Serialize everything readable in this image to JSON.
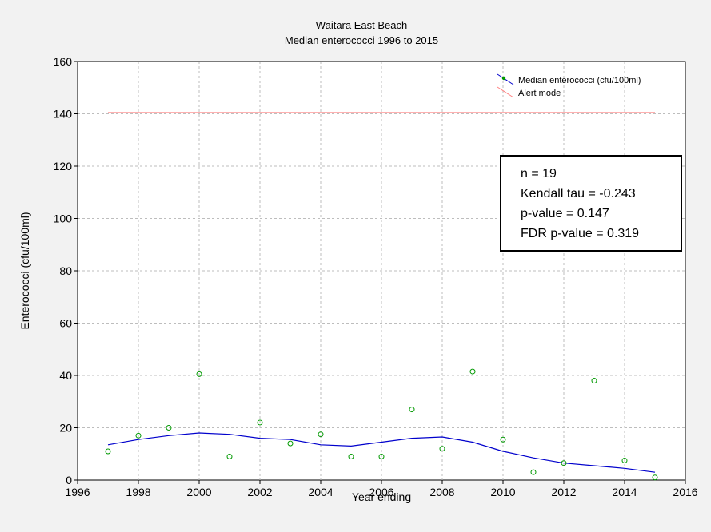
{
  "chart_data": {
    "type": "scatter",
    "title": "Waitara East Beach",
    "subtitle": "Median enterococci 1996 to 2015",
    "xlabel": "Year ending",
    "ylabel": "Enterococci (cfu/100ml)",
    "xlim": [
      1996,
      2016
    ],
    "ylim": [
      0,
      160
    ],
    "x_ticks": [
      1996,
      1998,
      2000,
      2002,
      2004,
      2006,
      2008,
      2010,
      2012,
      2014,
      2016
    ],
    "y_ticks": [
      0,
      20,
      40,
      60,
      80,
      100,
      120,
      140,
      160
    ],
    "grid": true,
    "legend_position": "top-right",
    "series": [
      {
        "name": "Median enterococci (cfu/100ml)",
        "kind": "scatter+smooth",
        "marker_color": "#009900",
        "line_color": "#0000cc",
        "points": [
          {
            "x": 1997,
            "y": 11
          },
          {
            "x": 1998,
            "y": 17
          },
          {
            "x": 1999,
            "y": 20
          },
          {
            "x": 2000,
            "y": 40.5
          },
          {
            "x": 2001,
            "y": 9
          },
          {
            "x": 2002,
            "y": 22
          },
          {
            "x": 2003,
            "y": 14
          },
          {
            "x": 2004,
            "y": 17.5
          },
          {
            "x": 2005,
            "y": 9
          },
          {
            "x": 2006,
            "y": 9
          },
          {
            "x": 2007,
            "y": 27
          },
          {
            "x": 2008,
            "y": 12
          },
          {
            "x": 2009,
            "y": 41.5
          },
          {
            "x": 2010,
            "y": 15.5
          },
          {
            "x": 2011,
            "y": 3
          },
          {
            "x": 2012,
            "y": 6.5
          },
          {
            "x": 2013,
            "y": 38
          },
          {
            "x": 2014,
            "y": 7.5
          },
          {
            "x": 2015,
            "y": 1
          }
        ],
        "smooth": [
          {
            "x": 1997,
            "y": 13.5
          },
          {
            "x": 1998,
            "y": 15.5
          },
          {
            "x": 1999,
            "y": 17
          },
          {
            "x": 2000,
            "y": 18
          },
          {
            "x": 2001,
            "y": 17.5
          },
          {
            "x": 2002,
            "y": 16
          },
          {
            "x": 2003,
            "y": 15.5
          },
          {
            "x": 2004,
            "y": 13.5
          },
          {
            "x": 2005,
            "y": 13
          },
          {
            "x": 2006,
            "y": 14.5
          },
          {
            "x": 2007,
            "y": 16
          },
          {
            "x": 2008,
            "y": 16.5
          },
          {
            "x": 2009,
            "y": 14.5
          },
          {
            "x": 2010,
            "y": 11
          },
          {
            "x": 2011,
            "y": 8.5
          },
          {
            "x": 2012,
            "y": 6.5
          },
          {
            "x": 2013,
            "y": 5.5
          },
          {
            "x": 2014,
            "y": 4.5
          },
          {
            "x": 2015,
            "y": 3
          }
        ]
      },
      {
        "name": "Alert mode",
        "kind": "line",
        "line_color": "#ff8080",
        "points": [
          {
            "x": 1997,
            "y": 140.5
          },
          {
            "x": 2015,
            "y": 140.5
          }
        ]
      }
    ],
    "stats_box": [
      "n = 19",
      "Kendall tau = -0.243",
      "p-value = 0.147",
      "FDR p-value = 0.319"
    ]
  }
}
